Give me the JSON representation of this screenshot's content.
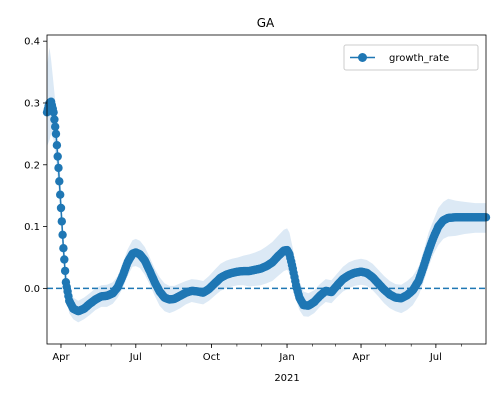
{
  "chart_data": {
    "type": "line",
    "title": "GA",
    "xlabel": "",
    "ylabel": "",
    "x_start": "2020-03-15",
    "x_end": "2021-08-31",
    "ylim": [
      -0.09,
      0.41
    ],
    "x_ticks": [
      {
        "date": "2020-04-01",
        "label": "Apr"
      },
      {
        "date": "2020-07-01",
        "label": "Jul"
      },
      {
        "date": "2020-10-01",
        "label": "Oct"
      },
      {
        "date": "2021-01-01",
        "label": "Jan",
        "sublabel": "2021"
      },
      {
        "date": "2021-04-01",
        "label": "Apr"
      },
      {
        "date": "2021-07-01",
        "label": "Jul"
      }
    ],
    "y_ticks": [
      {
        "value": 0.0,
        "label": "0.0"
      },
      {
        "value": 0.1,
        "label": "0.1"
      },
      {
        "value": 0.2,
        "label": "0.2"
      },
      {
        "value": 0.3,
        "label": "0.3"
      },
      {
        "value": 0.4,
        "label": "0.4"
      }
    ],
    "reference_line": {
      "value": 0.0,
      "style": "dashed",
      "color": "#1f77b4"
    },
    "legend": {
      "position": "top-right",
      "entries": [
        "growth_rate"
      ]
    },
    "series": [
      {
        "name": "growth_rate",
        "color": "#1f77b4",
        "band_color": "#dce9f5",
        "points": [
          [
            "2020-03-15",
            0.285,
            0.23,
            0.36
          ],
          [
            "2020-03-18",
            0.3,
            0.24,
            0.39
          ],
          [
            "2020-03-20",
            0.302,
            0.25,
            0.37
          ],
          [
            "2020-03-23",
            0.285,
            0.24,
            0.33
          ],
          [
            "2020-03-26",
            0.25,
            0.21,
            0.29
          ],
          [
            "2020-03-29",
            0.195,
            0.16,
            0.23
          ],
          [
            "2020-04-01",
            0.13,
            0.1,
            0.16
          ],
          [
            "2020-04-04",
            0.065,
            0.04,
            0.09
          ],
          [
            "2020-04-07",
            0.01,
            -0.01,
            0.03
          ],
          [
            "2020-04-11",
            -0.02,
            -0.04,
            0.0
          ],
          [
            "2020-04-16",
            -0.033,
            -0.05,
            -0.015
          ],
          [
            "2020-04-22",
            -0.037,
            -0.055,
            -0.02
          ],
          [
            "2020-04-29",
            -0.033,
            -0.05,
            -0.015
          ],
          [
            "2020-05-06",
            -0.025,
            -0.043,
            -0.008
          ],
          [
            "2020-05-13",
            -0.018,
            -0.035,
            0.0
          ],
          [
            "2020-05-20",
            -0.013,
            -0.03,
            0.005
          ],
          [
            "2020-05-27",
            -0.012,
            -0.03,
            0.006
          ],
          [
            "2020-06-03",
            -0.008,
            -0.025,
            0.01
          ],
          [
            "2020-06-09",
            0.002,
            -0.015,
            0.02
          ],
          [
            "2020-06-15",
            0.02,
            0.0,
            0.04
          ],
          [
            "2020-06-21",
            0.042,
            0.02,
            0.063
          ],
          [
            "2020-06-27",
            0.056,
            0.035,
            0.078
          ],
          [
            "2020-07-01",
            0.058,
            0.036,
            0.08
          ],
          [
            "2020-07-06",
            0.055,
            0.033,
            0.077
          ],
          [
            "2020-07-12",
            0.045,
            0.022,
            0.067
          ],
          [
            "2020-07-18",
            0.028,
            0.006,
            0.05
          ],
          [
            "2020-07-24",
            0.01,
            -0.012,
            0.032
          ],
          [
            "2020-07-30",
            -0.005,
            -0.028,
            0.018
          ],
          [
            "2020-08-05",
            -0.015,
            -0.037,
            0.008
          ],
          [
            "2020-08-11",
            -0.018,
            -0.04,
            0.004
          ],
          [
            "2020-08-17",
            -0.017,
            -0.037,
            0.004
          ],
          [
            "2020-08-24",
            -0.012,
            -0.032,
            0.008
          ],
          [
            "2020-08-31",
            -0.007,
            -0.026,
            0.012
          ],
          [
            "2020-09-07",
            -0.004,
            -0.022,
            0.015
          ],
          [
            "2020-09-14",
            -0.005,
            -0.024,
            0.014
          ],
          [
            "2020-09-21",
            -0.007,
            -0.026,
            0.012
          ],
          [
            "2020-09-28",
            -0.001,
            -0.02,
            0.02
          ],
          [
            "2020-10-05",
            0.008,
            -0.012,
            0.03
          ],
          [
            "2020-10-12",
            0.017,
            -0.004,
            0.04
          ],
          [
            "2020-10-19",
            0.022,
            0.0,
            0.045
          ],
          [
            "2020-10-26",
            0.025,
            0.003,
            0.048
          ],
          [
            "2020-11-02",
            0.027,
            0.005,
            0.05
          ],
          [
            "2020-11-09",
            0.028,
            0.005,
            0.053
          ],
          [
            "2020-11-16",
            0.028,
            0.003,
            0.055
          ],
          [
            "2020-11-23",
            0.03,
            0.004,
            0.058
          ],
          [
            "2020-11-30",
            0.032,
            0.005,
            0.062
          ],
          [
            "2020-12-07",
            0.036,
            0.008,
            0.068
          ],
          [
            "2020-12-14",
            0.042,
            0.012,
            0.075
          ],
          [
            "2020-12-21",
            0.052,
            0.02,
            0.085
          ],
          [
            "2020-12-28",
            0.061,
            0.028,
            0.095
          ],
          [
            "2021-01-01",
            0.062,
            0.03,
            0.097
          ],
          [
            "2021-01-04",
            0.055,
            0.024,
            0.09
          ],
          [
            "2021-01-08",
            0.032,
            0.004,
            0.065
          ],
          [
            "2021-01-12",
            0.005,
            -0.018,
            0.035
          ],
          [
            "2021-01-16",
            -0.015,
            -0.035,
            0.012
          ],
          [
            "2021-01-21",
            -0.027,
            -0.045,
            -0.005
          ],
          [
            "2021-01-27",
            -0.028,
            -0.046,
            -0.008
          ],
          [
            "2021-02-03",
            -0.022,
            -0.04,
            -0.003
          ],
          [
            "2021-02-10",
            -0.012,
            -0.03,
            0.007
          ],
          [
            "2021-02-17",
            -0.004,
            -0.022,
            0.015
          ],
          [
            "2021-02-24",
            -0.006,
            -0.024,
            0.013
          ],
          [
            "2021-03-03",
            0.005,
            -0.014,
            0.024
          ],
          [
            "2021-03-10",
            0.015,
            -0.005,
            0.035
          ],
          [
            "2021-03-17",
            0.021,
            0.0,
            0.042
          ],
          [
            "2021-03-24",
            0.025,
            0.004,
            0.046
          ],
          [
            "2021-04-01",
            0.027,
            0.006,
            0.048
          ],
          [
            "2021-04-08",
            0.025,
            0.004,
            0.046
          ],
          [
            "2021-04-15",
            0.018,
            -0.003,
            0.04
          ],
          [
            "2021-04-22",
            0.008,
            -0.013,
            0.03
          ],
          [
            "2021-04-29",
            -0.002,
            -0.024,
            0.02
          ],
          [
            "2021-05-06",
            -0.01,
            -0.032,
            0.012
          ],
          [
            "2021-05-13",
            -0.015,
            -0.037,
            0.007
          ],
          [
            "2021-05-20",
            -0.016,
            -0.04,
            0.006
          ],
          [
            "2021-05-27",
            -0.011,
            -0.035,
            0.012
          ],
          [
            "2021-06-03",
            -0.003,
            -0.027,
            0.02
          ],
          [
            "2021-06-10",
            0.012,
            -0.012,
            0.035
          ],
          [
            "2021-06-16",
            0.035,
            0.01,
            0.06
          ],
          [
            "2021-06-22",
            0.06,
            0.035,
            0.09
          ],
          [
            "2021-06-28",
            0.082,
            0.055,
            0.11
          ],
          [
            "2021-07-04",
            0.1,
            0.07,
            0.13
          ],
          [
            "2021-07-10",
            0.11,
            0.08,
            0.14
          ],
          [
            "2021-07-16",
            0.114,
            0.084,
            0.145
          ],
          [
            "2021-07-25",
            0.115,
            0.085,
            0.142
          ],
          [
            "2021-08-05",
            0.115,
            0.088,
            0.14
          ],
          [
            "2021-08-18",
            0.115,
            0.09,
            0.138
          ],
          [
            "2021-08-31",
            0.115,
            0.09,
            0.138
          ]
        ]
      }
    ]
  }
}
